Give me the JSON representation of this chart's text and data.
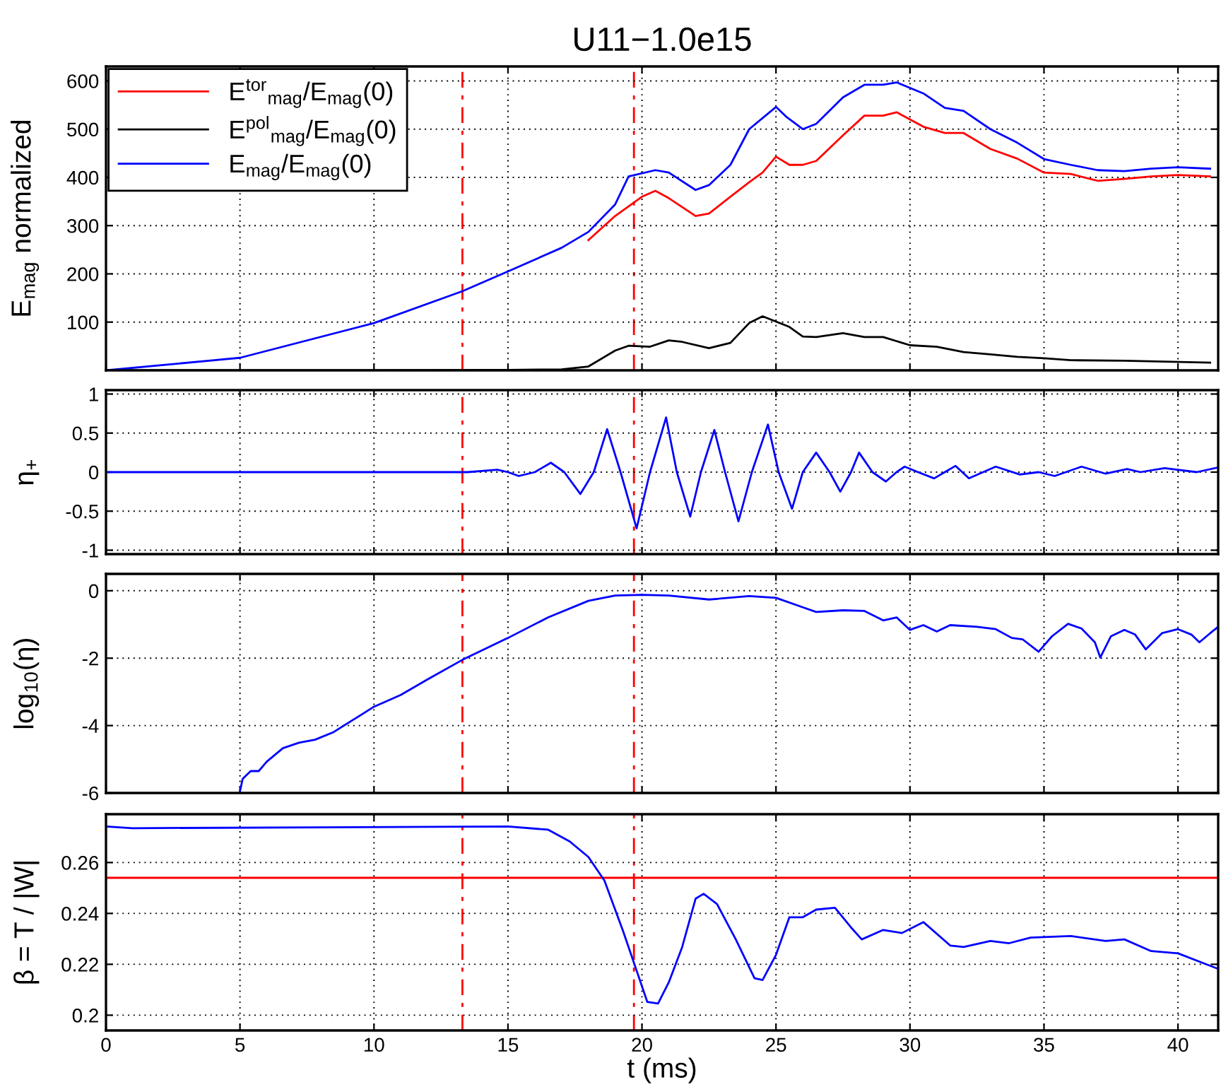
{
  "chart_data": [
    {
      "type": "line",
      "title": "U11−1.0e15",
      "ylabel": "E$_{mag}$ normalized",
      "xlim": [
        0,
        41.5
      ],
      "ylim": [
        0,
        630
      ],
      "xticks": [
        0,
        5,
        10,
        15,
        20,
        25,
        30,
        35,
        40
      ],
      "yticks": [
        100,
        200,
        300,
        400,
        500,
        600
      ],
      "tick_labels": "y",
      "grid": true,
      "legend": "top left",
      "line_style": "solid",
      "marker": "none",
      "ref_lines": [
        {
          "axis": "x",
          "value": 13.3,
          "label": null,
          "color": "#ff0000",
          "line_style": "dashed"
        },
        {
          "axis": "x",
          "value": 19.7,
          "label": null,
          "color": "#ff0000",
          "line_style": "dashed"
        }
      ],
      "series": [
        {
          "name": "E$^{tor}$$_{mag}$/E$_{mag}$(0)",
          "color": "#ff0000",
          "x": [
            18,
            19,
            20,
            20.5,
            21,
            22,
            22.5,
            23.3,
            24,
            24.5,
            25,
            25.5,
            26,
            26.5,
            27.5,
            28.3,
            29,
            29.5,
            30.5,
            31.3,
            32,
            33,
            34,
            35,
            36,
            37,
            38,
            39,
            40,
            41.2
          ],
          "values": [
            270,
            320,
            360,
            372,
            357,
            320,
            325,
            360,
            390,
            410,
            443,
            426,
            426,
            434,
            487,
            528,
            528,
            535,
            505,
            492,
            492,
            459,
            439,
            410,
            407,
            393,
            397,
            402,
            405,
            402
          ]
        },
        {
          "name": "E$^{pol}$$_{mag}$/E$_{mag}$(0)",
          "color": "#000000",
          "x": [
            0,
            10,
            15,
            17,
            18,
            19,
            19.5,
            20.3,
            21,
            21.5,
            22.5,
            23.3,
            24,
            24.5,
            25.5,
            26,
            26.5,
            27.5,
            28.3,
            29,
            30,
            31,
            32,
            33,
            34,
            35,
            36,
            38,
            41.2
          ],
          "values": [
            0,
            0,
            1,
            2,
            8,
            41,
            51,
            49,
            62,
            59,
            46,
            57,
            98,
            112,
            90,
            70,
            69,
            77,
            69,
            69,
            52,
            49,
            38,
            33,
            28,
            25,
            21,
            20,
            16
          ]
        },
        {
          "name": "E$_{mag}$/E$_{mag}$(0)",
          "color": "#0000ff",
          "x": [
            0,
            5,
            10,
            13.3,
            15,
            17,
            18,
            19,
            19.5,
            20.5,
            21,
            22,
            22.5,
            23.3,
            24,
            25,
            25.4,
            26,
            26.5,
            27.5,
            28.3,
            29,
            29.5,
            30.5,
            31.3,
            32,
            33,
            34,
            35,
            36,
            37,
            38,
            39,
            40,
            41.2
          ],
          "values": [
            0,
            26,
            98,
            164,
            205,
            254,
            287,
            344,
            402,
            415,
            410,
            374,
            384,
            426,
            500,
            546,
            525,
            500,
            511,
            566,
            592,
            592,
            597,
            574,
            544,
            538,
            500,
            472,
            438,
            426,
            415,
            413,
            418,
            421,
            418
          ]
        }
      ]
    },
    {
      "type": "line",
      "ylabel": "η$_{+}$",
      "xlim": [
        0,
        41.5
      ],
      "ylim": [
        -1.05,
        1.05
      ],
      "xticks": [
        0,
        5,
        10,
        15,
        20,
        25,
        30,
        35,
        40
      ],
      "yticks": [
        -1,
        -0.5,
        0,
        0.5,
        1
      ],
      "tick_labels": "y",
      "grid": true,
      "line_style": "solid",
      "marker": "none",
      "ref_lines": [
        {
          "axis": "x",
          "value": 13.3,
          "label": null,
          "color": "#ff0000",
          "line_style": "dashed"
        },
        {
          "axis": "x",
          "value": 19.7,
          "label": null,
          "color": "#ff0000",
          "line_style": "dashed"
        }
      ],
      "series": [
        {
          "color": "#0000ff",
          "x": [
            0,
            13.5,
            14.6,
            15.0,
            15.4,
            16.0,
            16.6,
            17.1,
            17.7,
            18.2,
            18.7,
            19.2,
            19.8,
            20.3,
            20.9,
            21.3,
            21.8,
            22.2,
            22.7,
            23.1,
            23.6,
            24.1,
            24.7,
            25.1,
            25.6,
            26.0,
            26.5,
            27.0,
            27.4,
            27.8,
            28.1,
            28.6,
            29.1,
            29.5,
            29.8,
            30.3,
            30.9,
            31.3,
            31.7,
            32.2,
            33.2,
            34.1,
            34.8,
            35.4,
            36.4,
            37.3,
            38.1,
            38.6,
            39.5,
            40.7,
            41.5
          ],
          "values": [
            0,
            0,
            0.03,
            0,
            -0.05,
            0,
            0.12,
            0,
            -0.28,
            0,
            0.55,
            0,
            -0.72,
            0,
            0.7,
            0,
            -0.57,
            0,
            0.54,
            0,
            -0.63,
            0,
            0.61,
            0,
            -0.47,
            0,
            0.25,
            0,
            -0.25,
            0,
            0.25,
            0,
            -0.12,
            0,
            0.07,
            0,
            -0.08,
            0,
            0.08,
            -0.08,
            0.07,
            -0.03,
            0.0,
            -0.05,
            0.07,
            -0.02,
            0.04,
            0.0,
            0.05,
            0.0,
            0.06
          ]
        }
      ]
    },
    {
      "type": "line",
      "ylabel": "log$_{10}$(η)",
      "xlim": [
        0,
        41.5
      ],
      "ylim": [
        -6,
        0.5
      ],
      "xticks": [
        0,
        5,
        10,
        15,
        20,
        25,
        30,
        35,
        40
      ],
      "yticks": [
        -6,
        -4,
        -2,
        0
      ],
      "tick_labels": "y",
      "grid": true,
      "line_style": "solid",
      "marker": "none",
      "ref_lines": [
        {
          "axis": "x",
          "value": 13.3,
          "label": null,
          "color": "#ff0000",
          "line_style": "dashed"
        },
        {
          "axis": "x",
          "value": 19.7,
          "label": null,
          "color": "#ff0000",
          "line_style": "dashed"
        }
      ],
      "series": [
        {
          "color": "#0000ff",
          "x": [
            5,
            5.1,
            5.4,
            5.7,
            6,
            6.6,
            7.2,
            7.8,
            8.5,
            9.3,
            10,
            11,
            12,
            13.3,
            15,
            16.5,
            18,
            19,
            20,
            21,
            22.5,
            24,
            25,
            26,
            26.5,
            27.5,
            28.3,
            29,
            29.5,
            30,
            30.5,
            31,
            31.5,
            32.5,
            33.2,
            33.8,
            34.2,
            34.8,
            35.3,
            35.9,
            36.4,
            36.9,
            37.1,
            37.5,
            38,
            38.4,
            38.8,
            39.4,
            40,
            40.5,
            40.8,
            41.2,
            41.5
          ],
          "values": [
            -5.95,
            -5.58,
            -5.35,
            -5.35,
            -5.07,
            -4.67,
            -4.51,
            -4.42,
            -4.19,
            -3.79,
            -3.44,
            -3.09,
            -2.63,
            -2.05,
            -1.4,
            -0.79,
            -0.3,
            -0.14,
            -0.12,
            -0.14,
            -0.26,
            -0.16,
            -0.21,
            -0.49,
            -0.63,
            -0.58,
            -0.6,
            -0.88,
            -0.79,
            -1.16,
            -1.02,
            -1.21,
            -1.02,
            -1.07,
            -1.14,
            -1.4,
            -1.44,
            -1.81,
            -1.35,
            -0.98,
            -1.12,
            -1.53,
            -1.98,
            -1.35,
            -1.16,
            -1.3,
            -1.74,
            -1.26,
            -1.14,
            -1.3,
            -1.53,
            -1.26,
            -1.07
          ]
        }
      ]
    },
    {
      "type": "line",
      "ylabel": "β = T / |W|",
      "xlabel": "t (ms)",
      "xlim": [
        0,
        41.5
      ],
      "ylim": [
        0.194,
        0.279
      ],
      "xticks": [
        0,
        5,
        10,
        15,
        20,
        25,
        30,
        35,
        40
      ],
      "yticks": [
        0.2,
        0.22,
        0.24,
        0.26
      ],
      "grid": true,
      "line_style": "solid",
      "marker": "none",
      "ref_lines": [
        {
          "axis": "x",
          "value": 13.3,
          "label": null,
          "color": "#ff0000",
          "line_style": "dashed"
        },
        {
          "axis": "x",
          "value": 19.7,
          "label": null,
          "color": "#ff0000",
          "line_style": "dashed"
        },
        {
          "axis": "y",
          "value": 0.254,
          "label": null,
          "color": "#ff0000",
          "line_style": "solid"
        }
      ],
      "series": [
        {
          "color": "#0000ff",
          "x": [
            0,
            1,
            15,
            16.5,
            17.3,
            18,
            18.6,
            19.3,
            19.8,
            20.2,
            20.6,
            21,
            21.5,
            22,
            22.3,
            22.8,
            23.5,
            24.2,
            24.5,
            25,
            25.5,
            26,
            26.5,
            27.2,
            27.8,
            28.2,
            29,
            29.7,
            30.5,
            31.5,
            32,
            33,
            33.7,
            34.5,
            36,
            37.3,
            38,
            39,
            40,
            41.5
          ],
          "values": [
            0.2742,
            0.2735,
            0.2742,
            0.2729,
            0.2683,
            0.2622,
            0.2529,
            0.2329,
            0.2175,
            0.2052,
            0.2046,
            0.2129,
            0.2268,
            0.2458,
            0.2477,
            0.2437,
            0.2298,
            0.2145,
            0.2138,
            0.2237,
            0.2385,
            0.2385,
            0.2415,
            0.2422,
            0.2345,
            0.2298,
            0.2335,
            0.2323,
            0.2366,
            0.2274,
            0.2268,
            0.2292,
            0.2283,
            0.2305,
            0.2311,
            0.2292,
            0.2298,
            0.2252,
            0.2243,
            0.2182
          ]
        }
      ]
    }
  ]
}
